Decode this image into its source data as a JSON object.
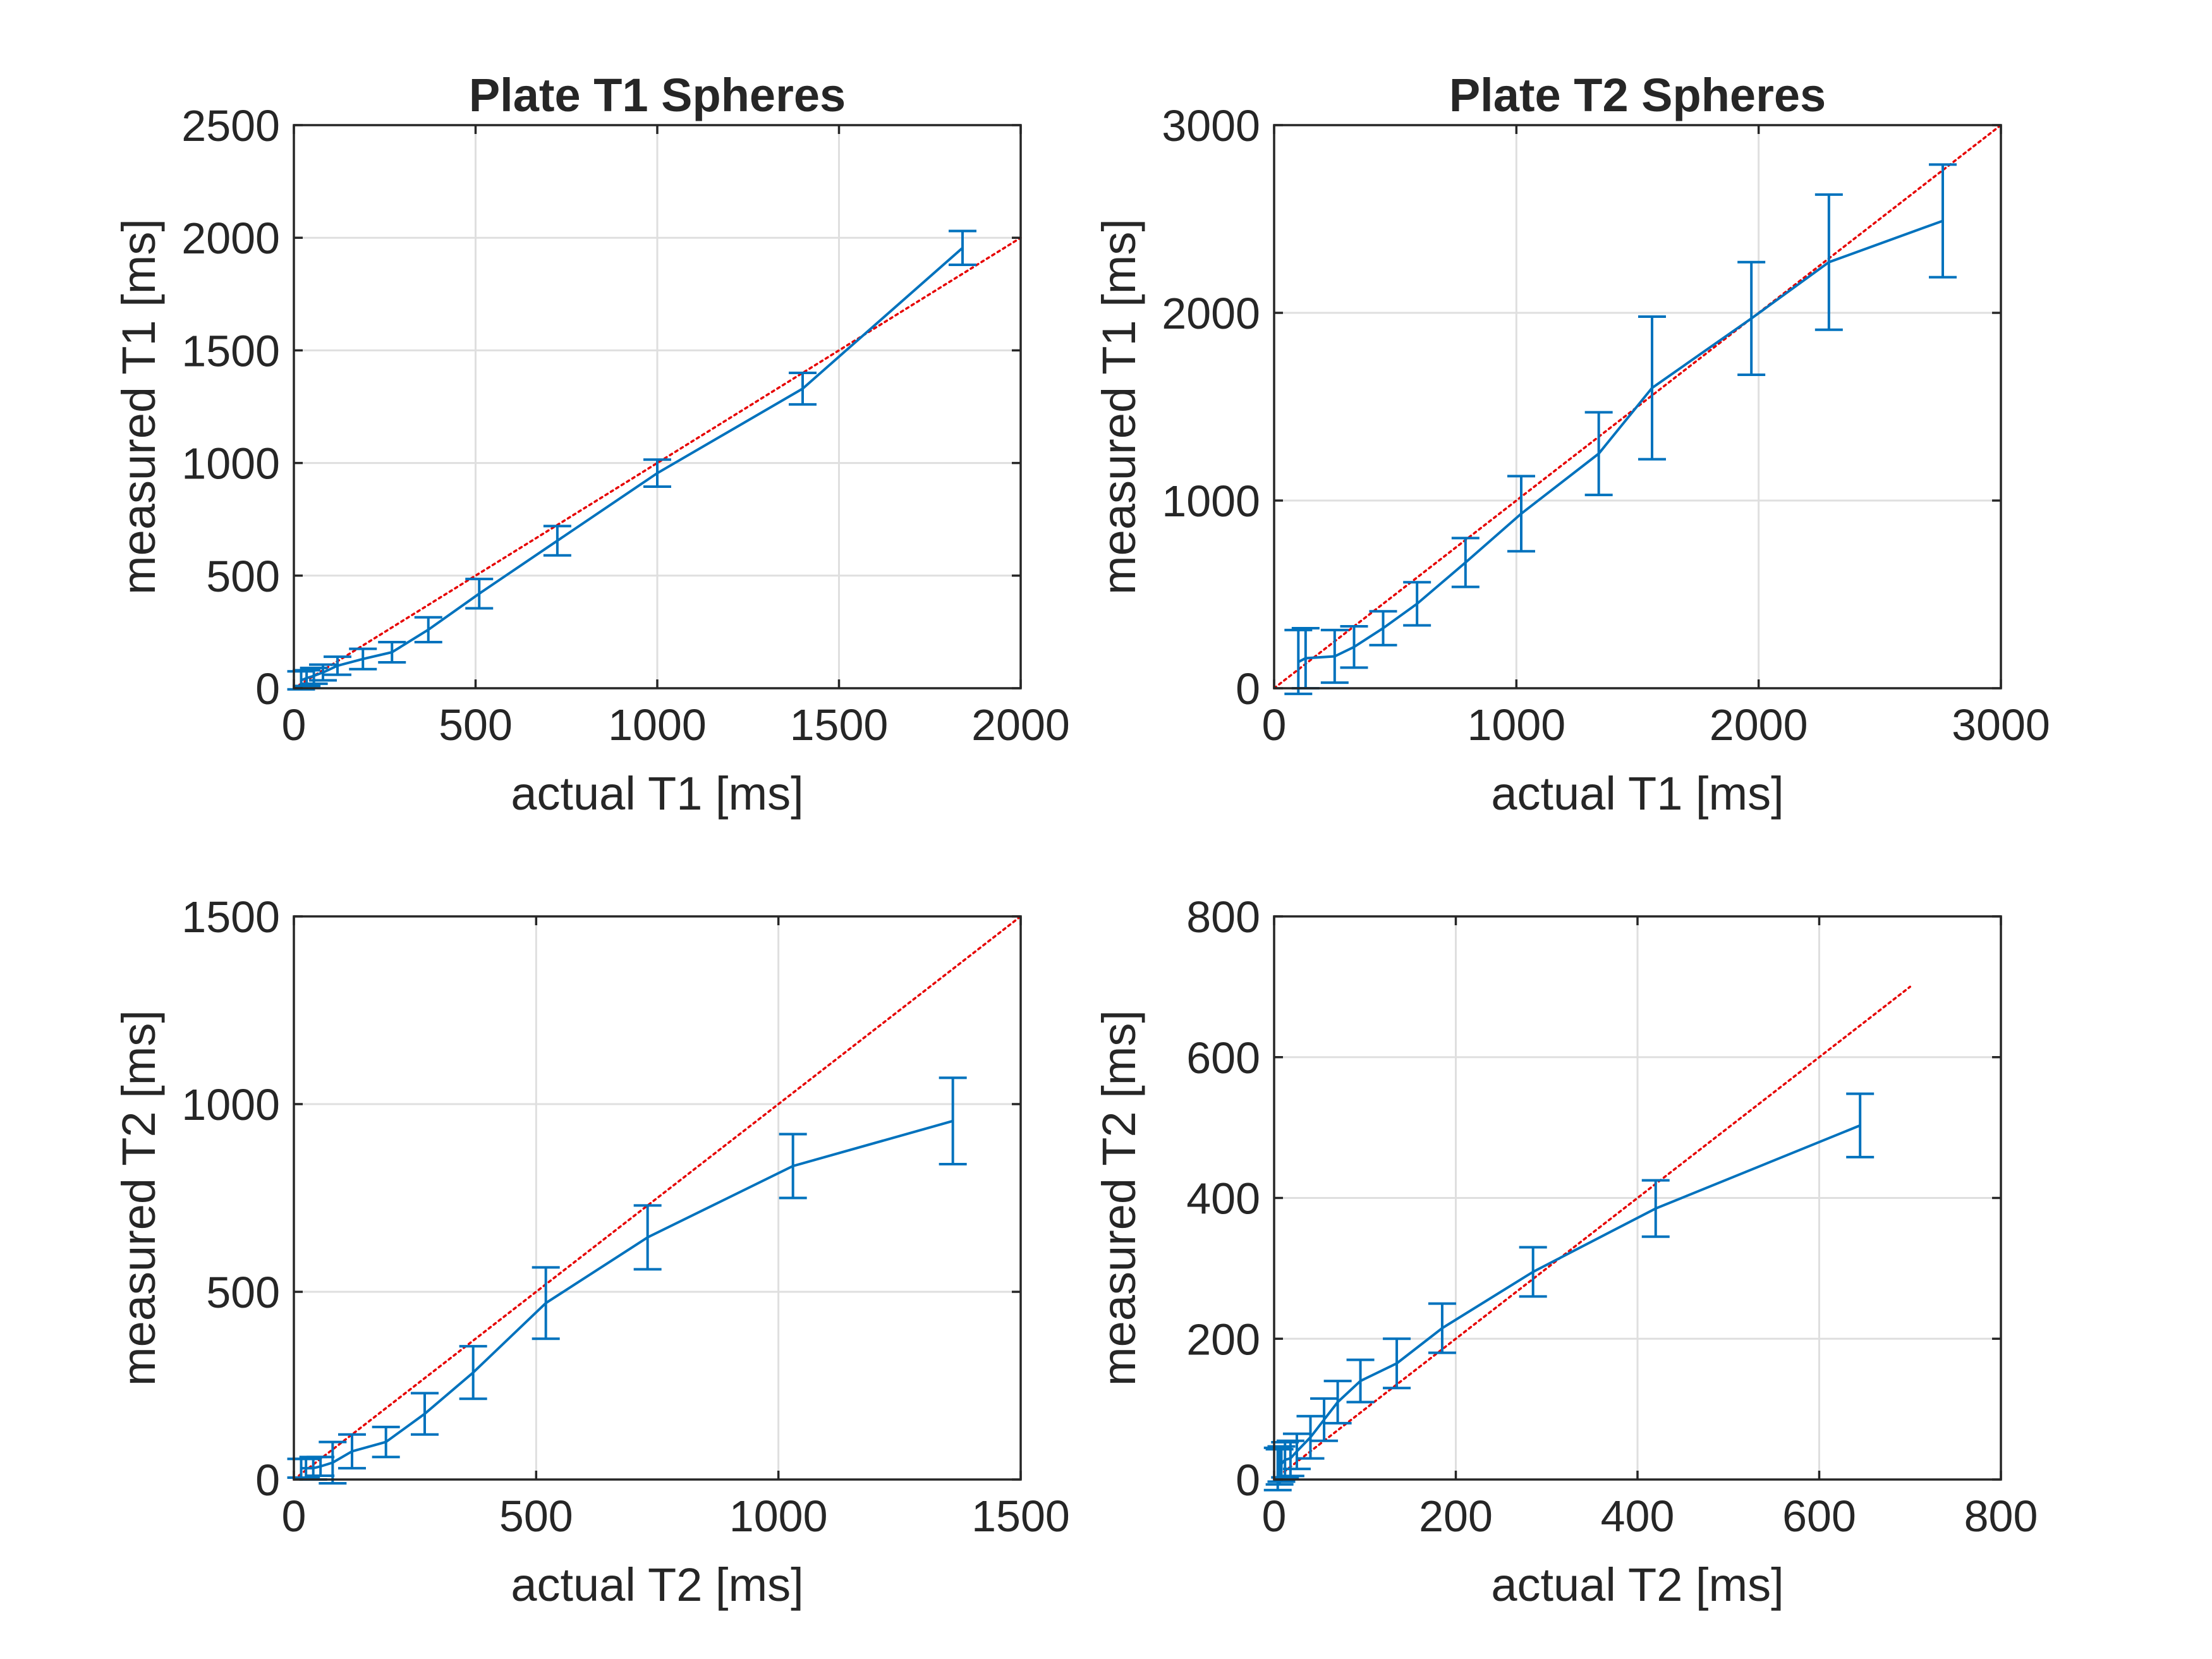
{
  "figure": {
    "reference_color": "#e60000",
    "series_color": "#0072bd"
  },
  "chart_data": [
    {
      "id": "top-left",
      "type": "line",
      "title": "Plate T1 Spheres",
      "xlabel": "actual T1 [ms]",
      "ylabel": "measured T1 [ms]",
      "xlim": [
        0,
        2000
      ],
      "ylim": [
        0,
        2500
      ],
      "xticks": [
        0,
        500,
        1000,
        1500,
        2000
      ],
      "yticks": [
        0,
        500,
        1000,
        1500,
        2000,
        2500
      ],
      "grid": true,
      "reference_line": [
        [
          0,
          0
        ],
        [
          2000,
          2000
        ]
      ],
      "series": [
        {
          "name": "measured",
          "x": [
            20,
            35,
            55,
            80,
            120,
            190,
            270,
            370,
            510,
            725,
            1000,
            1400,
            1840
          ],
          "y": [
            35,
            45,
            55,
            70,
            100,
            130,
            160,
            260,
            420,
            655,
            955,
            1330,
            1955
          ],
          "err": [
            40,
            35,
            35,
            35,
            40,
            45,
            45,
            55,
            65,
            65,
            60,
            70,
            75
          ]
        }
      ]
    },
    {
      "id": "top-right",
      "type": "line",
      "title": "Plate T2 Spheres",
      "xlabel": "actual T1 [ms]",
      "ylabel": "measured T1 [ms]",
      "xlim": [
        0,
        3000
      ],
      "ylim": [
        0,
        3000
      ],
      "xticks": [
        0,
        1000,
        2000,
        3000
      ],
      "yticks": [
        0,
        1000,
        2000,
        3000
      ],
      "grid": true,
      "reference_line": [
        [
          0,
          0
        ],
        [
          3000,
          3000
        ]
      ],
      "series": [
        {
          "name": "measured",
          "x": [
            100,
            130,
            250,
            330,
            450,
            590,
            790,
            1020,
            1340,
            1560,
            1970,
            2290,
            2760
          ],
          "y": [
            140,
            160,
            170,
            220,
            320,
            450,
            670,
            930,
            1250,
            1600,
            1970,
            2270,
            2490
          ],
          "err": [
            170,
            160,
            140,
            110,
            90,
            115,
            130,
            200,
            220,
            380,
            300,
            360,
            300
          ]
        }
      ]
    },
    {
      "id": "bottom-left",
      "type": "line",
      "title": "",
      "xlabel": "actual T2 [ms]",
      "ylabel": "measured T2 [ms]",
      "xlim": [
        0,
        1500
      ],
      "ylim": [
        0,
        1500
      ],
      "xticks": [
        0,
        500,
        1000,
        1500
      ],
      "yticks": [
        0,
        500,
        1000,
        1500
      ],
      "grid": true,
      "reference_line": [
        [
          0,
          0
        ],
        [
          1500,
          1500
        ]
      ],
      "series": [
        {
          "name": "measured",
          "x": [
            15,
            25,
            40,
            55,
            80,
            120,
            190,
            270,
            370,
            520,
            730,
            1030,
            1360
          ],
          "y": [
            30,
            30,
            30,
            35,
            45,
            75,
            100,
            175,
            285,
            470,
            645,
            835,
            955
          ],
          "err": [
            25,
            25,
            30,
            25,
            55,
            45,
            40,
            55,
            70,
            95,
            85,
            85,
            115
          ]
        }
      ]
    },
    {
      "id": "bottom-right",
      "type": "line",
      "title": "",
      "xlabel": "actual T2 [ms]",
      "ylabel": "measured T2 [ms]",
      "xlim": [
        0,
        800
      ],
      "ylim": [
        0,
        800
      ],
      "xticks": [
        0,
        200,
        400,
        600,
        800
      ],
      "yticks": [
        0,
        200,
        400,
        600,
        800
      ],
      "grid": true,
      "reference_line": [
        [
          0,
          0
        ],
        [
          700,
          700
        ]
      ],
      "series": [
        {
          "name": "measured",
          "x": [
            4,
            6,
            8,
            12,
            18,
            25,
            40,
            55,
            70,
            95,
            135,
            185,
            285,
            420,
            645
          ],
          "y": [
            15,
            18,
            22,
            28,
            30,
            40,
            60,
            85,
            110,
            140,
            165,
            215,
            295,
            385,
            503
          ],
          "err": [
            30,
            25,
            25,
            25,
            25,
            25,
            30,
            30,
            30,
            30,
            35,
            35,
            35,
            40,
            45
          ]
        }
      ]
    }
  ]
}
